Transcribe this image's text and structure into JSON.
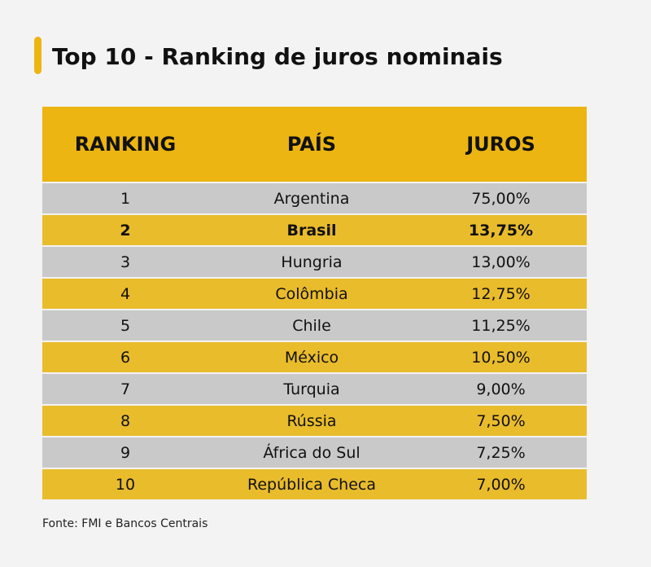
{
  "title": "Top 10 - Ranking de juros nominais",
  "headers": {
    "ranking": "RANKING",
    "pais": "PAÍS",
    "juros": "JUROS"
  },
  "chart_data": {
    "type": "table",
    "title": "Top 10 - Ranking de juros nominais",
    "columns": [
      "RANKING",
      "PAÍS",
      "JUROS"
    ],
    "highlighted_rank": "2",
    "rows": [
      {
        "rank": "1",
        "country": "Argentina",
        "rate": "75,00%"
      },
      {
        "rank": "2",
        "country": "Brasil",
        "rate": "13,75%"
      },
      {
        "rank": "3",
        "country": "Hungria",
        "rate": "13,00%"
      },
      {
        "rank": "4",
        "country": "Colômbia",
        "rate": "12,75%"
      },
      {
        "rank": "5",
        "country": "Chile",
        "rate": "11,25%"
      },
      {
        "rank": "6",
        "country": "México",
        "rate": "10,50%"
      },
      {
        "rank": "7",
        "country": "Turquia",
        "rate": "9,00%"
      },
      {
        "rank": "8",
        "country": "Rússia",
        "rate": "7,50%"
      },
      {
        "rank": "9",
        "country": "África do Sul",
        "rate": "7,25%"
      },
      {
        "rank": "10",
        "country": "República Checa",
        "rate": "7,00%"
      }
    ]
  },
  "colors": {
    "accent": "#ecb511",
    "row_gold": "#e9bc2c",
    "row_gray": "#c9c9c9",
    "background": "#f3f3f3"
  },
  "source": "Fonte: FMI e Bancos Centrais"
}
